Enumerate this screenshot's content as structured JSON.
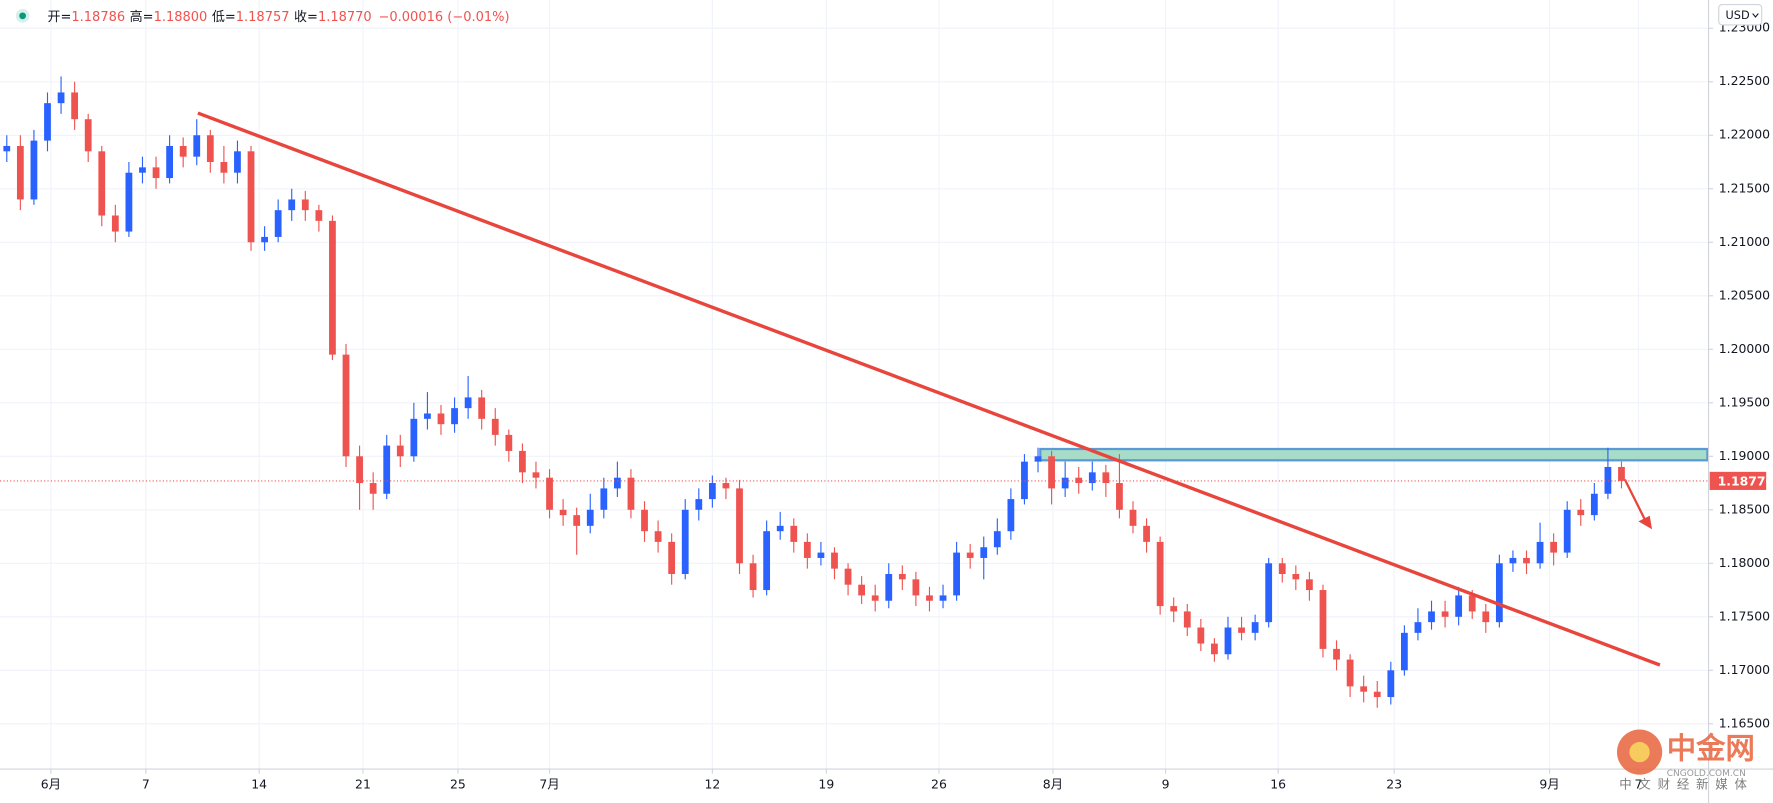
{
  "header": {
    "items": [
      {
        "label": "开=",
        "value": "1.18786"
      },
      {
        "label": "高=",
        "value": "1.18800"
      },
      {
        "label": "低=",
        "value": "1.18757"
      },
      {
        "label": "收=",
        "value": "1.18770"
      }
    ],
    "change": "−0.00016 (−0.01%)"
  },
  "currency": "USD",
  "watermark": {
    "title": "中金网",
    "site": "CNGOLD.COM.CN",
    "slogan": "中文财经新媒体"
  },
  "chart_data": {
    "type": "candlestick",
    "up_color": "#2962ff",
    "down_color": "#ef5350",
    "grid": true,
    "xlim": [
      -0.5,
      125.5
    ],
    "xticks": [
      {
        "value": 3.25,
        "label": "6月"
      },
      {
        "value": 10.25,
        "label": "7"
      },
      {
        "value": 18.6,
        "label": "14"
      },
      {
        "value": 26.25,
        "label": "21"
      },
      {
        "value": 33.25,
        "label": "25"
      },
      {
        "value": 40,
        "label": "7月"
      },
      {
        "value": 52,
        "label": "12"
      },
      {
        "value": 60.4,
        "label": "19"
      },
      {
        "value": 68.7,
        "label": "26"
      },
      {
        "value": 77.1,
        "label": "8月"
      },
      {
        "value": 85.4,
        "label": "9"
      },
      {
        "value": 93.7,
        "label": "16"
      },
      {
        "value": 102.25,
        "label": "23"
      },
      {
        "value": 113.7,
        "label": "9月"
      },
      {
        "value": 120.25,
        "label": "7"
      }
    ],
    "ylim": [
      1.16077,
      1.23264
    ],
    "yticks": [
      {
        "value": 1.165,
        "label": "1.16500"
      },
      {
        "value": 1.17,
        "label": "1.17000"
      },
      {
        "value": 1.175,
        "label": "1.17500"
      },
      {
        "value": 1.18,
        "label": "1.18000"
      },
      {
        "value": 1.185,
        "label": "1.18500"
      },
      {
        "value": 1.19,
        "label": "1.19000"
      },
      {
        "value": 1.195,
        "label": "1.19500"
      },
      {
        "value": 1.2,
        "label": "1.20000"
      },
      {
        "value": 1.205,
        "label": "1.20500"
      },
      {
        "value": 1.21,
        "label": "1.21000"
      },
      {
        "value": 1.215,
        "label": "1.21500"
      },
      {
        "value": 1.22,
        "label": "1.22000"
      },
      {
        "value": 1.225,
        "label": "1.22500"
      },
      {
        "value": 1.23,
        "label": "1.23000"
      }
    ],
    "last_price": {
      "value": 1.1877,
      "label": "1.18770"
    },
    "open": [
      1.2185,
      1.219,
      1.214,
      1.2195,
      1.223,
      1.224,
      1.2215,
      1.2185,
      1.2125,
      1.211,
      1.2165,
      1.217,
      1.216,
      1.219,
      1.218,
      1.22,
      1.2175,
      1.2165,
      1.2185,
      1.21,
      1.2105,
      1.213,
      1.214,
      1.213,
      1.212,
      1.1995,
      1.19,
      1.1875,
      1.1865,
      1.191,
      1.19,
      1.1935,
      1.194,
      1.193,
      1.1945,
      1.1955,
      1.1935,
      1.192,
      1.1905,
      1.1885,
      1.188,
      1.185,
      1.1845,
      1.1835,
      1.185,
      1.187,
      1.188,
      1.185,
      1.183,
      1.182,
      1.179,
      1.185,
      1.186,
      1.1875,
      1.187,
      1.18,
      1.1775,
      1.183,
      1.1835,
      1.182,
      1.1805,
      1.181,
      1.1795,
      1.178,
      1.177,
      1.1765,
      1.179,
      1.1785,
      1.177,
      1.1765,
      1.177,
      1.181,
      1.1805,
      1.1815,
      1.183,
      1.186,
      1.1895,
      1.19,
      1.187,
      1.188,
      1.1875,
      1.1885,
      1.1875,
      1.185,
      1.1835,
      1.182,
      1.176,
      1.1755,
      1.174,
      1.1725,
      1.1715,
      1.174,
      1.1735,
      1.1745,
      1.18,
      1.179,
      1.1785,
      1.1775,
      1.172,
      1.171,
      1.1685,
      1.168,
      1.1675,
      1.17,
      1.1735,
      1.1745,
      1.1755,
      1.175,
      1.177,
      1.1755,
      1.1745,
      1.18,
      1.1805,
      1.18,
      1.182,
      1.181,
      1.185,
      1.1845,
      1.1865,
      1.189
    ],
    "high": [
      1.22,
      1.22,
      1.2205,
      1.224,
      1.2255,
      1.225,
      1.222,
      1.219,
      1.2135,
      1.2175,
      1.218,
      1.218,
      1.22,
      1.2198,
      1.2215,
      1.2205,
      1.219,
      1.2195,
      1.219,
      1.2115,
      1.214,
      1.215,
      1.2148,
      1.2135,
      1.2125,
      1.2005,
      1.191,
      1.1885,
      1.192,
      1.192,
      1.195,
      1.196,
      1.1948,
      1.1955,
      1.1975,
      1.1962,
      1.1945,
      1.1925,
      1.1912,
      1.1895,
      1.1888,
      1.186,
      1.1852,
      1.1865,
      1.188,
      1.1895,
      1.1888,
      1.1858,
      1.184,
      1.1828,
      1.186,
      1.187,
      1.1882,
      1.188,
      1.1878,
      1.1808,
      1.184,
      1.1848,
      1.1842,
      1.1828,
      1.182,
      1.1815,
      1.18,
      1.1788,
      1.178,
      1.18,
      1.1798,
      1.1792,
      1.1778,
      1.178,
      1.182,
      1.1818,
      1.1825,
      1.1842,
      1.187,
      1.1902,
      1.1908,
      1.1905,
      1.1895,
      1.189,
      1.1895,
      1.1892,
      1.1902,
      1.1858,
      1.1842,
      1.1825,
      1.1768,
      1.1762,
      1.1748,
      1.173,
      1.175,
      1.175,
      1.1752,
      1.1805,
      1.1805,
      1.1798,
      1.1792,
      1.178,
      1.1728,
      1.1715,
      1.1695,
      1.169,
      1.1708,
      1.1742,
      1.1758,
      1.1765,
      1.1765,
      1.1778,
      1.1775,
      1.1762,
      1.1808,
      1.1812,
      1.1812,
      1.1838,
      1.1828,
      1.1858,
      1.186,
      1.1875,
      1.1908,
      1.1895
    ],
    "low": [
      1.2175,
      1.213,
      1.2135,
      1.2185,
      1.222,
      1.2205,
      1.2175,
      1.2115,
      1.21,
      1.2105,
      1.2155,
      1.215,
      1.2155,
      1.217,
      1.2172,
      1.2165,
      1.2155,
      1.2155,
      1.2092,
      1.2092,
      1.21,
      1.212,
      1.212,
      1.211,
      1.199,
      1.189,
      1.185,
      1.185,
      1.186,
      1.189,
      1.1895,
      1.1925,
      1.192,
      1.1922,
      1.1935,
      1.1925,
      1.191,
      1.1895,
      1.1875,
      1.187,
      1.1842,
      1.1835,
      1.1808,
      1.1828,
      1.1842,
      1.1862,
      1.1842,
      1.182,
      1.181,
      1.178,
      1.1785,
      1.184,
      1.1852,
      1.186,
      1.179,
      1.1768,
      1.177,
      1.1822,
      1.181,
      1.1795,
      1.1798,
      1.1785,
      1.177,
      1.1762,
      1.1755,
      1.1758,
      1.1775,
      1.176,
      1.1755,
      1.1758,
      1.1765,
      1.1795,
      1.1785,
      1.1808,
      1.1822,
      1.1855,
      1.1885,
      1.1855,
      1.1862,
      1.1865,
      1.1868,
      1.1862,
      1.1842,
      1.1828,
      1.181,
      1.1752,
      1.1745,
      1.1732,
      1.1718,
      1.1708,
      1.171,
      1.1728,
      1.1728,
      1.174,
      1.1782,
      1.1775,
      1.1765,
      1.1712,
      1.17,
      1.1675,
      1.167,
      1.1665,
      1.1668,
      1.1695,
      1.1728,
      1.1738,
      1.174,
      1.1742,
      1.1748,
      1.1735,
      1.174,
      1.1792,
      1.179,
      1.1795,
      1.1798,
      1.1805,
      1.1835,
      1.184,
      1.186,
      1.187
    ],
    "close": [
      1.219,
      1.214,
      1.2195,
      1.223,
      1.224,
      1.2215,
      1.2185,
      1.2125,
      1.211,
      1.2165,
      1.217,
      1.216,
      1.219,
      1.218,
      1.22,
      1.2175,
      1.2165,
      1.2185,
      1.21,
      1.2105,
      1.213,
      1.214,
      1.213,
      1.212,
      1.1995,
      1.19,
      1.1875,
      1.1865,
      1.191,
      1.19,
      1.1935,
      1.194,
      1.193,
      1.1945,
      1.1955,
      1.1935,
      1.192,
      1.1905,
      1.1885,
      1.188,
      1.185,
      1.1845,
      1.1835,
      1.185,
      1.187,
      1.188,
      1.185,
      1.183,
      1.182,
      1.179,
      1.185,
      1.186,
      1.1875,
      1.187,
      1.18,
      1.1775,
      1.183,
      1.1835,
      1.182,
      1.1805,
      1.181,
      1.1795,
      1.178,
      1.177,
      1.1765,
      1.179,
      1.1785,
      1.177,
      1.1765,
      1.177,
      1.181,
      1.1805,
      1.1815,
      1.183,
      1.186,
      1.1895,
      1.19,
      1.187,
      1.188,
      1.1875,
      1.1885,
      1.1875,
      1.185,
      1.1835,
      1.182,
      1.176,
      1.1755,
      1.174,
      1.1725,
      1.1715,
      1.174,
      1.1735,
      1.1745,
      1.18,
      1.179,
      1.1785,
      1.1775,
      1.172,
      1.171,
      1.1685,
      1.168,
      1.1675,
      1.17,
      1.1735,
      1.1745,
      1.1755,
      1.175,
      1.177,
      1.1755,
      1.1745,
      1.18,
      1.1805,
      1.18,
      1.182,
      1.181,
      1.185,
      1.1845,
      1.1865,
      1.189,
      1.1877
    ]
  }
}
